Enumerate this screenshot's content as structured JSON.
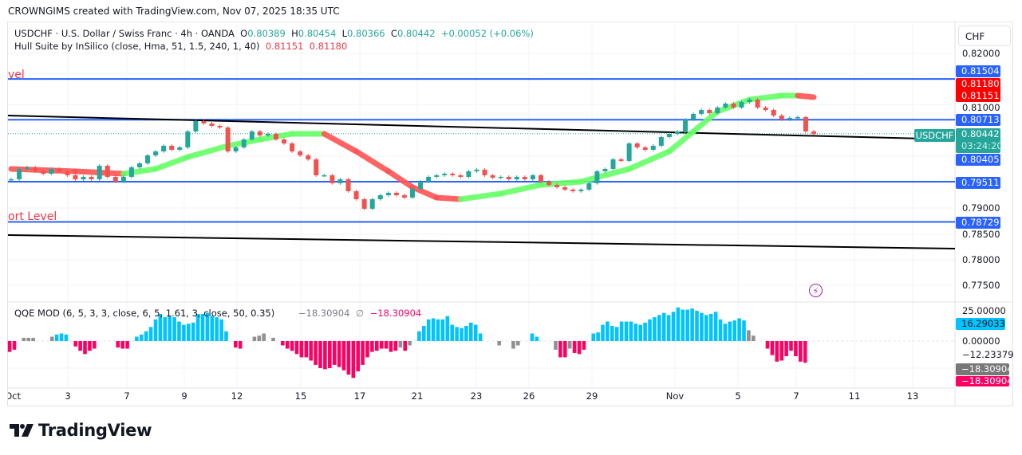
{
  "caption": "CROWNGIMS created with TradingView.com, Nov 07, 2025 18:35 UTC",
  "legend": {
    "symbol_line": "USDCHF · U.S. Dollar / Swiss Franc · 4h · OANDA",
    "o_label": "O",
    "o": "0.80389",
    "h_label": "H",
    "h": "0.80454",
    "l_label": "L",
    "l": "0.80366",
    "c_label": "C",
    "c": "0.80442",
    "change": "+0.00052 (+0.06%)",
    "hull_name": "Hull Suite by InSilico (close, Hma, 51, 1.5, 240, 1, 40)",
    "hull_v1": "0.81151",
    "hull_v2": "0.81180",
    "qqe_name": "QQE MOD (6, 5, 3, 3, close, 6, 5, 1.61, 3, close, 50, 0.35)",
    "qqe_v1": "−18.30904",
    "qqe_sep": "∅",
    "qqe_v2": "−18.30904"
  },
  "level_texts": {
    "resistance": "vel",
    "support": "ort Level"
  },
  "price_axis": {
    "currency": "CHF",
    "ticks": [
      "0.82000",
      "0.81000",
      "0.79000",
      "0.78500",
      "0.78000",
      "0.77500"
    ],
    "badges": {
      "r1": "0.81504",
      "hull2": "0.81180",
      "hull1": "0.81151",
      "r2": "0.80713",
      "last": "0.80442",
      "countdown": "03:24:20",
      "s0": "0.80405",
      "s1": "0.79511",
      "s2": "0.78729"
    },
    "symbol_tag": "USDCHF"
  },
  "qqe_axis": {
    "ticks": [
      "25.00000",
      "0.00000",
      "−12.23379"
    ],
    "badges": {
      "cyan": "16.29033",
      "gray": "−18.30904",
      "pink": "−18.30904"
    }
  },
  "time_axis": [
    "Oct",
    "3",
    "7",
    "9",
    "12",
    "15",
    "17",
    "21",
    "23",
    "26",
    "29",
    "Nov",
    "5",
    "7",
    "11",
    "13"
  ],
  "brand": "TradingView",
  "colors": {
    "up": "#26a69a",
    "down": "#ef5350",
    "level": "#2962ff",
    "hull_up": "#66ff66",
    "hull_down": "#ff5252",
    "qqe_blue": "#00c3ff",
    "qqe_pink": "#ff0062",
    "qqe_gray": "#909090"
  },
  "chart_data": [
    {
      "type": "candlestick",
      "symbol": "USDCHF",
      "timeframe": "4h",
      "ylim": [
        0.772,
        0.8225
      ],
      "closes": [
        0.79557,
        0.79758,
        0.79789,
        0.79712,
        0.79665,
        0.79758,
        0.79712,
        0.79635,
        0.79557,
        0.79604,
        0.79557,
        0.7982,
        0.79604,
        0.79511,
        0.79604,
        0.79789,
        0.79866,
        0.80021,
        0.80098,
        0.80207,
        0.80129,
        0.80176,
        0.80485,
        0.80686,
        0.8064,
        0.80593,
        0.80562,
        0.80098,
        0.80176,
        0.8033,
        0.80485,
        0.80408,
        0.80439,
        0.8033,
        0.80253,
        0.80098,
        0.80021,
        0.79944,
        0.79635,
        0.79635,
        0.7948,
        0.79557,
        0.79325,
        0.79171,
        0.78985,
        0.79171,
        0.79248,
        0.79295,
        0.79248,
        0.79202,
        0.79372,
        0.79511,
        0.79604,
        0.79635,
        0.79665,
        0.79635,
        0.79604,
        0.79712,
        0.79743,
        0.79635,
        0.79588,
        0.79604,
        0.79557,
        0.79604,
        0.79557,
        0.79635,
        0.79511,
        0.79449,
        0.79403,
        0.79356,
        0.79325,
        0.79356,
        0.7948,
        0.79712,
        0.79758,
        0.79944,
        0.79913,
        0.80253,
        0.80176,
        0.80129,
        0.80207,
        0.80377,
        0.80439,
        0.80485,
        0.80717,
        0.80825,
        0.80902,
        0.80841,
        0.80949,
        0.81026,
        0.80949,
        0.81057,
        0.81103,
        0.80949,
        0.80902,
        0.80794,
        0.80717,
        0.80748,
        0.80763,
        0.80485,
        0.80442
      ],
      "hull_suite": [
        [
          0,
          0.79758
        ],
        [
          8,
          0.79712
        ],
        [
          14,
          0.79665
        ],
        [
          18,
          0.79758
        ],
        [
          22,
          0.79989
        ],
        [
          27,
          0.80206
        ],
        [
          31,
          0.8033
        ],
        [
          35,
          0.80439
        ],
        [
          39,
          0.80439
        ],
        [
          43,
          0.80098
        ],
        [
          47,
          0.79712
        ],
        [
          50,
          0.79403
        ],
        [
          53,
          0.79202
        ],
        [
          56,
          0.79171
        ],
        [
          61,
          0.79279
        ],
        [
          66,
          0.79449
        ],
        [
          71,
          0.79511
        ],
        [
          77,
          0.79758
        ],
        [
          82,
          0.80098
        ],
        [
          85,
          0.80485
        ],
        [
          88,
          0.80871
        ],
        [
          92,
          0.81103
        ],
        [
          96,
          0.81181
        ],
        [
          98,
          0.81181
        ],
        [
          100,
          0.8115
        ]
      ],
      "horizontal_levels": [
        0.81504,
        0.80713,
        0.79511,
        0.78729
      ],
      "current_price": 0.80442,
      "trendlines": [
        {
          "from": 0.80794,
          "to": 0.8033
        },
        {
          "from": 0.78475,
          "to": 0.78212
        }
      ]
    },
    {
      "type": "histogram",
      "name": "QQE MOD",
      "ylim": [
        -35,
        30
      ],
      "bars": [
        [
          -10,
          "p"
        ],
        [
          -8,
          "p"
        ],
        null,
        [
          3,
          "g"
        ],
        [
          3,
          "g"
        ],
        [
          3,
          "g"
        ],
        null,
        null,
        null,
        [
          4,
          "g"
        ],
        [
          6,
          "b"
        ],
        [
          7,
          "b"
        ],
        [
          6,
          "b"
        ],
        null,
        [
          -5,
          "p"
        ],
        [
          -9,
          "p"
        ],
        [
          -12,
          "p"
        ],
        [
          -9,
          "p"
        ],
        [
          -7,
          "p"
        ],
        null,
        null,
        null,
        null,
        [
          -6,
          "p"
        ],
        [
          -7,
          "p"
        ],
        [
          -7,
          "p"
        ],
        null,
        [
          4,
          "b"
        ],
        [
          6,
          "b"
        ],
        [
          9,
          "b"
        ],
        [
          13,
          "b"
        ],
        [
          20,
          "b"
        ],
        [
          25,
          "b"
        ],
        [
          22,
          "b"
        ],
        [
          23,
          "b"
        ],
        [
          22,
          "b"
        ],
        [
          18,
          "b"
        ],
        [
          15,
          "b"
        ],
        [
          16,
          "b"
        ],
        [
          17,
          "b"
        ],
        [
          25,
          "b"
        ],
        [
          25,
          "b"
        ],
        [
          26,
          "b"
        ],
        [
          23,
          "b"
        ],
        [
          22,
          "b"
        ],
        [
          20,
          "b"
        ],
        [
          9,
          "b"
        ],
        null,
        [
          -6,
          "p"
        ],
        [
          -7,
          "p"
        ],
        null,
        null,
        [
          4,
          "g"
        ],
        [
          5,
          "g"
        ],
        [
          7,
          "g"
        ],
        null,
        [
          3,
          "g"
        ],
        null,
        [
          -4,
          "p"
        ],
        [
          -7,
          "p"
        ],
        [
          -9,
          "p"
        ],
        [
          -12,
          "p"
        ],
        [
          -15,
          "p"
        ],
        [
          -15,
          "p"
        ],
        [
          -18,
          "p"
        ],
        [
          -22,
          "p"
        ],
        [
          -25,
          "p"
        ],
        [
          -26,
          "p"
        ],
        [
          -25,
          "p"
        ],
        [
          -22,
          "p"
        ],
        [
          -24,
          "p"
        ],
        [
          -27,
          "p"
        ],
        [
          -31,
          "p"
        ],
        [
          -34,
          "p"
        ],
        [
          -28,
          "p"
        ],
        [
          -22,
          "p"
        ],
        [
          -15,
          "p"
        ],
        [
          -10,
          "p"
        ],
        [
          -9,
          "p"
        ],
        [
          -7,
          "p"
        ],
        [
          -7,
          "p"
        ],
        [
          -10,
          "p"
        ],
        [
          -9,
          "p"
        ],
        [
          -6,
          "g"
        ],
        [
          -9,
          "p"
        ],
        [
          -4,
          "g"
        ],
        null,
        [
          9,
          "b"
        ],
        [
          14,
          "b"
        ],
        [
          20,
          "b"
        ],
        [
          21,
          "b"
        ],
        [
          20,
          "b"
        ],
        [
          20,
          "b"
        ],
        [
          23,
          "b"
        ],
        [
          15,
          "b"
        ],
        [
          13,
          "b"
        ],
        [
          12,
          "b"
        ],
        [
          14,
          "b"
        ],
        [
          17,
          "b"
        ],
        [
          15,
          "b"
        ],
        [
          7,
          "b"
        ],
        null,
        null,
        null,
        [
          -4,
          "g"
        ],
        null,
        null,
        [
          -7,
          "g"
        ],
        [
          -4,
          "g"
        ],
        null,
        null,
        [
          7,
          "b"
        ],
        [
          4,
          "b"
        ],
        null,
        null,
        null,
        [
          -8,
          "g"
        ],
        [
          -15,
          "p"
        ],
        [
          -15,
          "p"
        ],
        [
          -7,
          "g"
        ],
        [
          -11,
          "p"
        ],
        [
          -12,
          "p"
        ],
        [
          -8,
          "p"
        ],
        null,
        [
          7,
          "b"
        ],
        [
          8,
          "b"
        ],
        [
          15,
          "b"
        ],
        [
          18,
          "b"
        ],
        [
          14,
          "b"
        ],
        [
          13,
          "b"
        ],
        [
          18,
          "b"
        ],
        [
          18,
          "b"
        ],
        [
          18,
          "b"
        ],
        [
          16,
          "b"
        ],
        [
          15,
          "b"
        ],
        [
          17,
          "b"
        ],
        [
          20,
          "b"
        ],
        [
          22,
          "b"
        ],
        [
          24,
          "b"
        ],
        [
          26,
          "b"
        ],
        [
          24,
          "b"
        ],
        [
          27,
          "b"
        ],
        [
          31,
          "b"
        ],
        [
          29,
          "b"
        ],
        [
          29,
          "b"
        ],
        [
          30,
          "b"
        ],
        [
          28,
          "b"
        ],
        [
          26,
          "b"
        ],
        [
          24,
          "b"
        ],
        [
          25,
          "b"
        ],
        [
          27,
          "b"
        ],
        [
          20,
          "b"
        ],
        [
          16,
          "b"
        ],
        [
          18,
          "b"
        ],
        [
          19,
          "b"
        ],
        [
          21,
          "b"
        ],
        [
          19,
          "b"
        ],
        [
          10,
          "g"
        ],
        [
          5,
          "g"
        ],
        null,
        null,
        [
          -7,
          "p"
        ],
        [
          -13,
          "p"
        ],
        [
          -19,
          "p"
        ],
        [
          -18,
          "p"
        ],
        [
          -14,
          "p"
        ],
        [
          -9,
          "p"
        ],
        [
          -14,
          "p"
        ],
        [
          -19,
          "p"
        ],
        [
          -20,
          "p"
        ]
      ]
    }
  ]
}
